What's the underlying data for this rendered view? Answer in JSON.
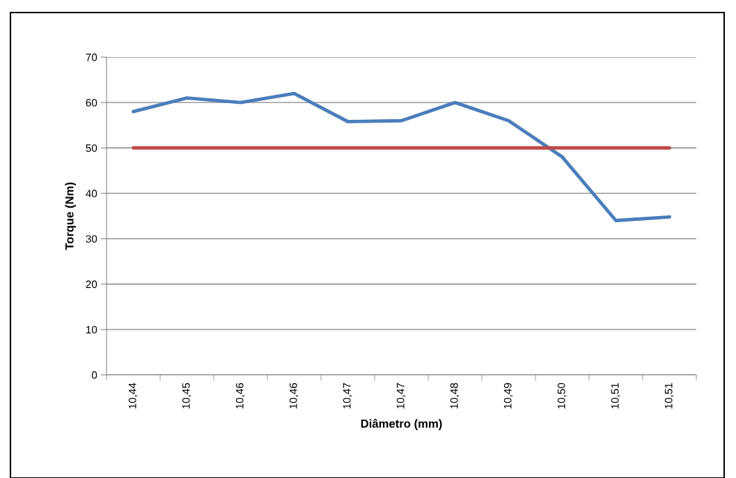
{
  "chart_data": {
    "type": "line",
    "xlabel": "Diâmetro (mm)",
    "ylabel": "Torque (Nm)",
    "categories": [
      "10,44",
      "10,45",
      "10,46",
      "10,46",
      "10,47",
      "10,47",
      "10,48",
      "10,49",
      "10,50",
      "10,51",
      "10,51"
    ],
    "series": [
      {
        "color": "#4a7ebb",
        "values": [
          58,
          61,
          60,
          62,
          55.8,
          56,
          60,
          56,
          48,
          34,
          34.8
        ]
      },
      {
        "color": "#be4b48",
        "values": [
          50,
          50,
          50,
          50,
          50,
          50,
          50,
          50,
          50,
          50,
          50
        ]
      }
    ],
    "ylim": [
      0,
      70
    ],
    "yticks": [
      0,
      10,
      20,
      30,
      40,
      50,
      60,
      70
    ],
    "grid": "y",
    "legend": false,
    "marker": "none",
    "line_style": "solid"
  }
}
